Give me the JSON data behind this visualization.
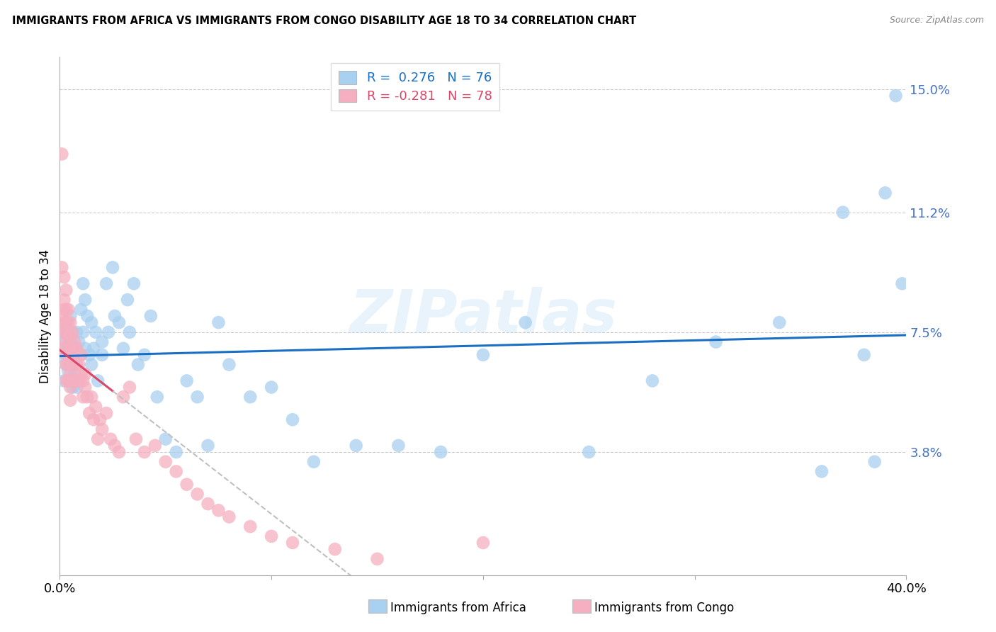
{
  "title": "IMMIGRANTS FROM AFRICA VS IMMIGRANTS FROM CONGO DISABILITY AGE 18 TO 34 CORRELATION CHART",
  "source": "Source: ZipAtlas.com",
  "xlabel_africa": "Immigrants from Africa",
  "xlabel_congo": "Immigrants from Congo",
  "ylabel": "Disability Age 18 to 34",
  "R_africa": 0.276,
  "N_africa": 76,
  "R_congo": -0.281,
  "N_congo": 78,
  "xlim": [
    0.0,
    0.4
  ],
  "ylim": [
    0.0,
    0.16
  ],
  "color_africa": "#a8d0f0",
  "color_congo": "#f5afc0",
  "line_color_africa": "#1a6fc4",
  "line_color_congo": "#d9486a",
  "watermark": "ZIPatlas",
  "africa_x": [
    0.001,
    0.001,
    0.002,
    0.002,
    0.003,
    0.003,
    0.003,
    0.004,
    0.004,
    0.004,
    0.005,
    0.005,
    0.005,
    0.006,
    0.006,
    0.006,
    0.007,
    0.007,
    0.008,
    0.008,
    0.009,
    0.01,
    0.01,
    0.011,
    0.011,
    0.012,
    0.012,
    0.013,
    0.014,
    0.015,
    0.015,
    0.016,
    0.017,
    0.018,
    0.02,
    0.02,
    0.022,
    0.023,
    0.025,
    0.026,
    0.028,
    0.03,
    0.032,
    0.033,
    0.035,
    0.037,
    0.04,
    0.043,
    0.046,
    0.05,
    0.055,
    0.06,
    0.065,
    0.07,
    0.075,
    0.08,
    0.09,
    0.1,
    0.11,
    0.12,
    0.14,
    0.16,
    0.18,
    0.2,
    0.22,
    0.25,
    0.28,
    0.31,
    0.34,
    0.36,
    0.37,
    0.38,
    0.385,
    0.39,
    0.395,
    0.398
  ],
  "africa_y": [
    0.075,
    0.068,
    0.072,
    0.06,
    0.065,
    0.07,
    0.078,
    0.063,
    0.075,
    0.068,
    0.06,
    0.072,
    0.08,
    0.065,
    0.058,
    0.075,
    0.07,
    0.062,
    0.075,
    0.058,
    0.072,
    0.082,
    0.068,
    0.09,
    0.075,
    0.085,
    0.07,
    0.08,
    0.068,
    0.078,
    0.065,
    0.07,
    0.075,
    0.06,
    0.068,
    0.072,
    0.09,
    0.075,
    0.095,
    0.08,
    0.078,
    0.07,
    0.085,
    0.075,
    0.09,
    0.065,
    0.068,
    0.08,
    0.055,
    0.042,
    0.038,
    0.06,
    0.055,
    0.04,
    0.078,
    0.065,
    0.055,
    0.058,
    0.048,
    0.035,
    0.04,
    0.04,
    0.038,
    0.068,
    0.078,
    0.038,
    0.06,
    0.072,
    0.078,
    0.032,
    0.112,
    0.068,
    0.035,
    0.118,
    0.148,
    0.09
  ],
  "congo_x": [
    0.001,
    0.001,
    0.001,
    0.002,
    0.002,
    0.002,
    0.002,
    0.002,
    0.002,
    0.003,
    0.003,
    0.003,
    0.003,
    0.003,
    0.003,
    0.003,
    0.003,
    0.004,
    0.004,
    0.004,
    0.004,
    0.004,
    0.004,
    0.005,
    0.005,
    0.005,
    0.005,
    0.005,
    0.005,
    0.005,
    0.006,
    0.006,
    0.006,
    0.006,
    0.007,
    0.007,
    0.007,
    0.008,
    0.008,
    0.008,
    0.009,
    0.009,
    0.01,
    0.01,
    0.011,
    0.011,
    0.012,
    0.012,
    0.013,
    0.014,
    0.015,
    0.016,
    0.017,
    0.018,
    0.019,
    0.02,
    0.022,
    0.024,
    0.026,
    0.028,
    0.03,
    0.033,
    0.036,
    0.04,
    0.045,
    0.05,
    0.055,
    0.06,
    0.065,
    0.07,
    0.075,
    0.08,
    0.09,
    0.1,
    0.11,
    0.13,
    0.15,
    0.2
  ],
  "congo_y": [
    0.13,
    0.095,
    0.08,
    0.092,
    0.085,
    0.082,
    0.078,
    0.075,
    0.07,
    0.088,
    0.082,
    0.078,
    0.075,
    0.072,
    0.068,
    0.065,
    0.06,
    0.082,
    0.078,
    0.074,
    0.07,
    0.065,
    0.06,
    0.078,
    0.074,
    0.07,
    0.066,
    0.062,
    0.058,
    0.054,
    0.075,
    0.07,
    0.065,
    0.06,
    0.072,
    0.066,
    0.06,
    0.07,
    0.065,
    0.06,
    0.065,
    0.06,
    0.068,
    0.062,
    0.06,
    0.055,
    0.062,
    0.058,
    0.055,
    0.05,
    0.055,
    0.048,
    0.052,
    0.042,
    0.048,
    0.045,
    0.05,
    0.042,
    0.04,
    0.038,
    0.055,
    0.058,
    0.042,
    0.038,
    0.04,
    0.035,
    0.032,
    0.028,
    0.025,
    0.022,
    0.02,
    0.018,
    0.015,
    0.012,
    0.01,
    0.008,
    0.005,
    0.01
  ]
}
